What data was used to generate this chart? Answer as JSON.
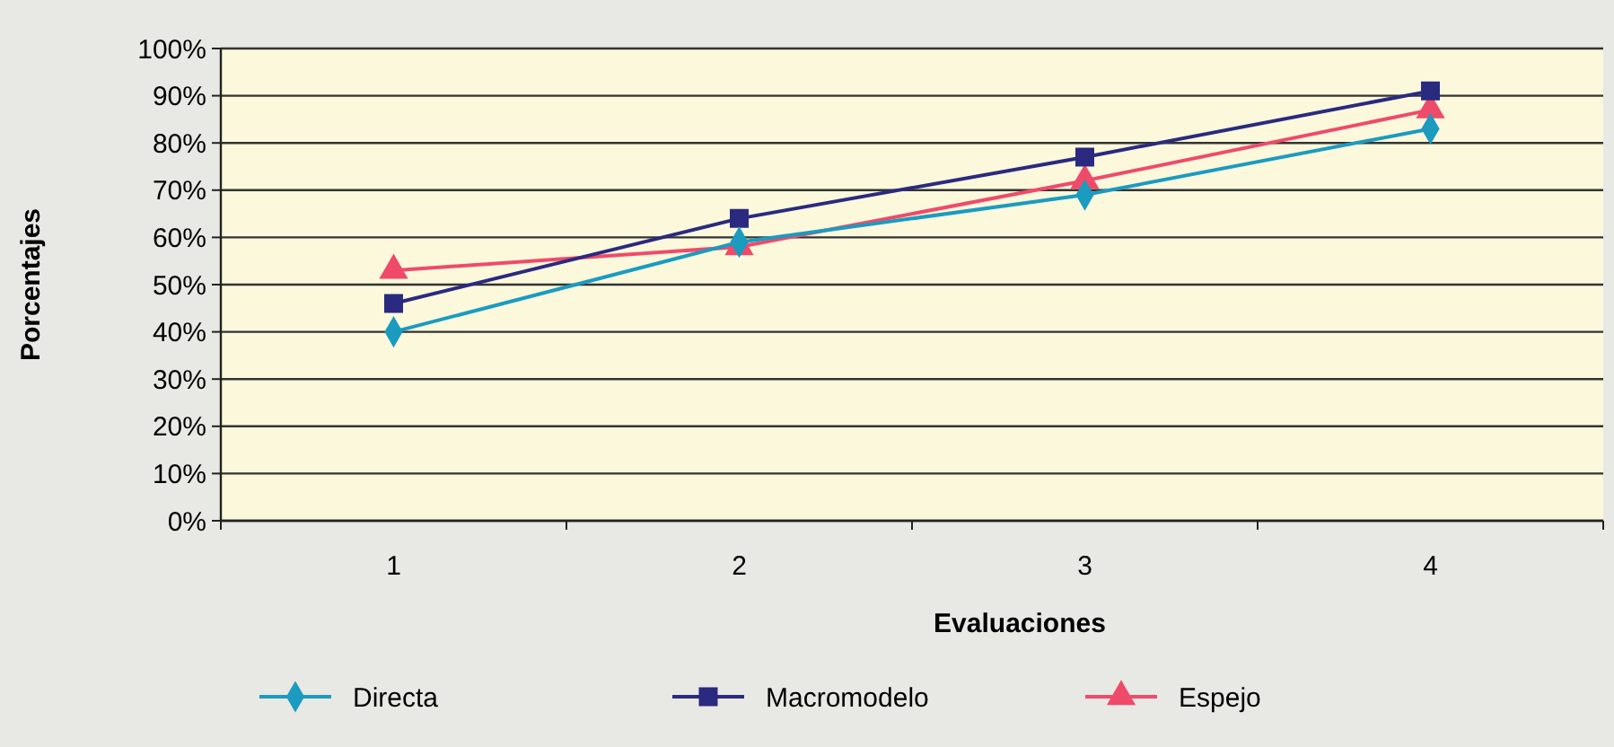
{
  "chart_data": {
    "type": "line",
    "xlabel": "Evaluaciones",
    "ylabel": "Porcentajes",
    "categories": [
      "1",
      "2",
      "3",
      "4"
    ],
    "ylim": [
      0,
      100
    ],
    "yticks": [
      {
        "value": 0,
        "label": "0%"
      },
      {
        "value": 10,
        "label": "10%"
      },
      {
        "value": 20,
        "label": "20%"
      },
      {
        "value": 30,
        "label": "30%"
      },
      {
        "value": 40,
        "label": "40%"
      },
      {
        "value": 50,
        "label": "50%"
      },
      {
        "value": 60,
        "label": "60%"
      },
      {
        "value": 70,
        "label": "70%"
      },
      {
        "value": 80,
        "label": "80%"
      },
      {
        "value": 90,
        "label": "90%"
      },
      {
        "value": 100,
        "label": "100%"
      }
    ],
    "grid": "y",
    "legend": "bottom",
    "series": [
      {
        "name": "Directa",
        "color": "#1b9bc0",
        "marker": "diamond",
        "values": [
          40,
          59,
          69,
          83
        ]
      },
      {
        "name": "Macromodelo",
        "color": "#2a2a80",
        "marker": "square",
        "values": [
          46,
          64,
          77,
          91
        ]
      },
      {
        "name": "Espejo",
        "color": "#f04a6a",
        "marker": "triangle",
        "values": [
          53,
          58,
          72,
          87
        ]
      }
    ]
  }
}
